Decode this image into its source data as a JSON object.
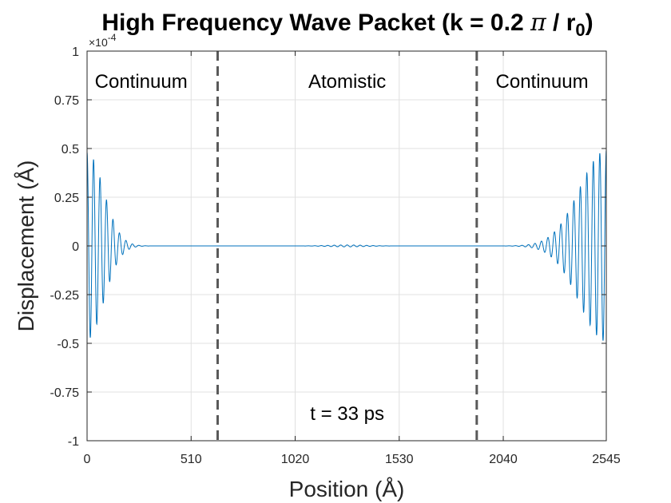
{
  "chart_data": {
    "type": "line",
    "title_main": "High Frequency Wave Packet (k = 0.2 ",
    "title_pi": "π",
    "title_tail": " / r",
    "title_sub": "0",
    "title_close": ")",
    "xlabel": "Position (Å)",
    "ylabel": "Displacement (Å)",
    "xlim": [
      0,
      2545
    ],
    "ylim": [
      -1,
      1
    ],
    "y_scale_prefix": "×10",
    "y_scale_exponent": "-4",
    "x_ticks": [
      0,
      510,
      1020,
      1530,
      2040,
      2545
    ],
    "x_tick_labels": [
      "0",
      "510",
      "1020",
      "1530",
      "2040",
      "2545"
    ],
    "y_ticks": [
      1,
      0.75,
      0.5,
      0.25,
      0,
      -0.25,
      -0.5,
      -0.75,
      -1
    ],
    "y_tick_labels": [
      "1",
      "0.75",
      "0.5",
      "0.25",
      "0",
      "-0.25",
      "-0.5",
      "-0.75",
      "-1"
    ],
    "grid": true,
    "region_boundaries": [
      640,
      1910
    ],
    "regions": [
      {
        "label": "Continuum",
        "x": 265
      },
      {
        "label": "Atomistic",
        "x": 1275
      },
      {
        "label": "Continuum",
        "x": 2230
      }
    ],
    "annotation": {
      "text": "t = 33 ps",
      "x": 1275,
      "y": -0.86
    },
    "series": [
      {
        "name": "displacement",
        "color": "#0072BD",
        "packets": [
          {
            "center": 0,
            "sigma": 80,
            "amplitude": 0.48,
            "wavelength": 31.8
          },
          {
            "center": 2545,
            "sigma": 130,
            "amplitude": 0.49,
            "wavelength": 31.8
          },
          {
            "center": 1275,
            "sigma": 90,
            "amplitude": 0.005,
            "wavelength": 31.8
          }
        ]
      }
    ]
  },
  "colors": {
    "line": "#0072BD",
    "grid": "#e0e0e0",
    "axis": "#262626",
    "boundary": "#595959"
  }
}
